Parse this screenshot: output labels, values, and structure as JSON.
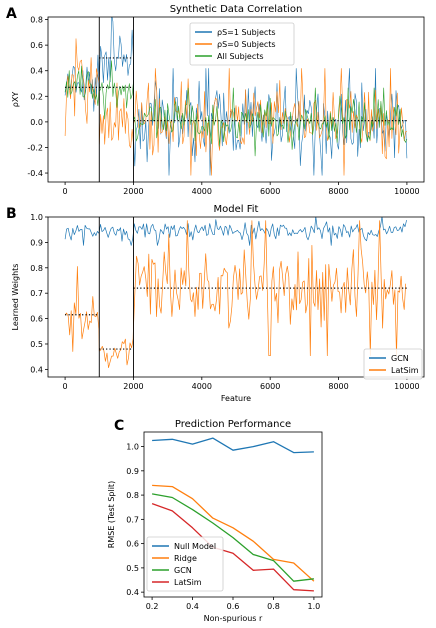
{
  "colors": {
    "blue": "#1f77b4",
    "orange": "#ff7f0e",
    "green": "#2ca02c",
    "red": "#d62728"
  },
  "chart_data": [
    {
      "panel": "A",
      "type": "line",
      "title": "Synthetic Data Correlation",
      "xlabel": "",
      "ylabel": "ρXY",
      "xlim": [
        -500,
        10500
      ],
      "ylim": [
        -0.47,
        0.82
      ],
      "xticks": [
        0,
        2000,
        4000,
        6000,
        8000,
        10000
      ],
      "yticks": [
        -0.4,
        -0.2,
        0.0,
        0.2,
        0.4,
        0.6,
        0.8
      ],
      "legend_position": "top-center",
      "vlines": [
        1000,
        2000
      ],
      "series": [
        {
          "name": "ρS=1 Subjects",
          "color": "blue",
          "segments": [
            {
              "x": [
                0,
                1000
              ],
              "mean": 0.27,
              "spread": 0.18
            },
            {
              "x": [
                1000,
                2000
              ],
              "mean": 0.5,
              "spread": 0.18
            },
            {
              "x": [
                2000,
                10000
              ],
              "mean": 0.0,
              "spread": 0.22
            }
          ]
        },
        {
          "name": "ρS=0 Subjects",
          "color": "orange",
          "segments": [
            {
              "x": [
                0,
                1000
              ],
              "mean": 0.27,
              "spread": 0.2
            },
            {
              "x": [
                1000,
                2000
              ],
              "mean": 0.0,
              "spread": 0.22
            },
            {
              "x": [
                2000,
                10000
              ],
              "mean": 0.0,
              "spread": 0.22
            }
          ]
        },
        {
          "name": "All Subjects",
          "color": "green",
          "segments": [
            {
              "x": [
                0,
                1000
              ],
              "mean": 0.27,
              "spread": 0.12
            },
            {
              "x": [
                1000,
                2000
              ],
              "mean": 0.25,
              "spread": 0.12
            },
            {
              "x": [
                2000,
                10000
              ],
              "mean": 0.0,
              "spread": 0.14
            }
          ]
        }
      ],
      "reference_lines": [
        {
          "x": [
            0,
            1000
          ],
          "y": 0.27
        },
        {
          "x": [
            1000,
            2000
          ],
          "y": 0.5
        },
        {
          "x": [
            1000,
            2000
          ],
          "y": 0.27
        },
        {
          "x": [
            2000,
            10000
          ],
          "y": 0.01
        }
      ]
    },
    {
      "panel": "B",
      "type": "line",
      "title": "Model Fit",
      "xlabel": "Feature",
      "ylabel": "Learned Weights",
      "xlim": [
        -500,
        10500
      ],
      "ylim": [
        0.37,
        1.0
      ],
      "xticks": [
        0,
        2000,
        4000,
        6000,
        8000,
        10000
      ],
      "yticks": [
        0.4,
        0.5,
        0.6,
        0.7,
        0.8,
        0.9,
        1.0
      ],
      "legend_position": "bottom-right",
      "vlines": [
        1000,
        2000
      ],
      "series": [
        {
          "name": "GCN",
          "color": "blue",
          "segments": [
            {
              "x": [
                0,
                10000
              ],
              "mean": 0.945,
              "spread": 0.03
            }
          ]
        },
        {
          "name": "LatSim",
          "color": "orange",
          "segments": [
            {
              "x": [
                0,
                1000
              ],
              "mean": 0.615,
              "spread": 0.1
            },
            {
              "x": [
                1000,
                2000
              ],
              "mean": 0.48,
              "spread": 0.06
            },
            {
              "x": [
                2000,
                10000
              ],
              "mean": 0.72,
              "spread": 0.14
            }
          ]
        }
      ],
      "reference_lines": [
        {
          "x": [
            0,
            1000
          ],
          "y": 0.615
        },
        {
          "x": [
            1000,
            2000
          ],
          "y": 0.48
        },
        {
          "x": [
            2000,
            10000
          ],
          "y": 0.72
        }
      ]
    },
    {
      "panel": "C",
      "type": "line",
      "title": "Prediction Performance",
      "xlabel": "Non-spurious r",
      "ylabel": "RMSE (Test Split)",
      "xlim": [
        0.16,
        1.04
      ],
      "ylim": [
        0.38,
        1.06
      ],
      "xticks": [
        0.2,
        0.4,
        0.6,
        0.8,
        1.0
      ],
      "yticks": [
        0.4,
        0.5,
        0.6,
        0.7,
        0.8,
        0.9,
        1.0
      ],
      "legend_position": "bottom-left",
      "x": [
        0.2,
        0.3,
        0.4,
        0.5,
        0.6,
        0.7,
        0.8,
        0.9,
        1.0
      ],
      "series": [
        {
          "name": "Null Model",
          "color": "blue",
          "values": [
            1.025,
            1.03,
            1.01,
            1.035,
            0.985,
            1.0,
            1.02,
            0.975,
            0.978
          ]
        },
        {
          "name": "Ridge",
          "color": "orange",
          "values": [
            0.84,
            0.835,
            0.785,
            0.705,
            0.665,
            0.61,
            0.535,
            0.52,
            0.445
          ]
        },
        {
          "name": "GCN",
          "color": "green",
          "values": [
            0.805,
            0.79,
            0.74,
            0.685,
            0.625,
            0.555,
            0.53,
            0.445,
            0.455
          ]
        },
        {
          "name": "LatSim",
          "color": "red",
          "values": [
            0.765,
            0.735,
            0.665,
            0.585,
            0.56,
            0.49,
            0.495,
            0.41,
            0.405
          ]
        }
      ]
    }
  ]
}
